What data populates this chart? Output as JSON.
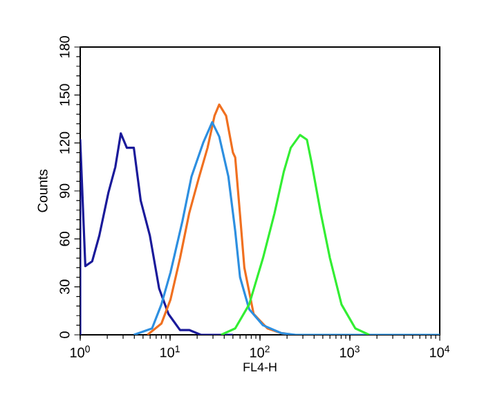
{
  "chart_data": {
    "type": "line",
    "xlabel": "FL4-H",
    "ylabel": "Counts",
    "log": "x",
    "marker": "none",
    "line_style": "solid",
    "grid": false,
    "xlim": [
      1,
      10000
    ],
    "xticks": [
      {
        "value": 1,
        "label": "10$^{0}$"
      },
      {
        "value": 10,
        "label": "10$^{1}$"
      },
      {
        "value": 100,
        "label": "10$^{2}$"
      },
      {
        "value": 1000,
        "label": "10$^{3}$"
      },
      {
        "value": 10000,
        "label": "10$^{4}$"
      }
    ],
    "ylim": [
      0,
      180
    ],
    "yticks": [
      0,
      30,
      60,
      90,
      120,
      150,
      180
    ],
    "series": [
      {
        "color": "#1a1a9a",
        "x": [
          1,
          1,
          1.14,
          1.36,
          1.63,
          2.06,
          2.46,
          2.83,
          3.3,
          3.95,
          4.71,
          5.96,
          7.55,
          9.6,
          12.9,
          16.3,
          22,
          50
        ],
        "values": [
          0,
          122,
          43,
          46,
          62,
          89,
          105,
          126,
          117,
          117,
          84,
          62,
          29,
          13,
          3,
          3,
          0,
          0
        ]
      },
      {
        "color": "#f07020",
        "x": [
          5.6,
          8,
          10.1,
          12.9,
          16.3,
          20.6,
          26.1,
          31.2,
          35.2,
          42,
          50,
          53,
          60,
          67,
          85,
          121,
          174,
          230
        ],
        "values": [
          0,
          7,
          22,
          48,
          76,
          97,
          117,
          137,
          144,
          137,
          114,
          111,
          75,
          42,
          13,
          4,
          1,
          0
        ]
      },
      {
        "color": "#2d8fe0",
        "x": [
          3.95,
          6.3,
          8,
          10.1,
          13.7,
          17.3,
          23.3,
          29.4,
          35.2,
          44.5,
          53,
          60,
          75.8,
          108,
          174,
          250,
          10000
        ],
        "values": [
          0,
          4,
          19,
          39,
          71,
          99,
          120,
          133,
          124,
          99,
          65,
          36,
          16,
          6,
          1,
          0,
          0
        ]
      },
      {
        "color": "#33ee33",
        "x": [
          37,
          53,
          75.8,
          108,
          145,
          184,
          220,
          279,
          333,
          374,
          475,
          600,
          807,
          1150,
          1640
        ],
        "values": [
          0,
          4,
          19,
          48,
          76,
          102,
          117,
          125,
          122,
          108,
          76,
          48,
          19,
          4,
          0
        ]
      }
    ]
  }
}
